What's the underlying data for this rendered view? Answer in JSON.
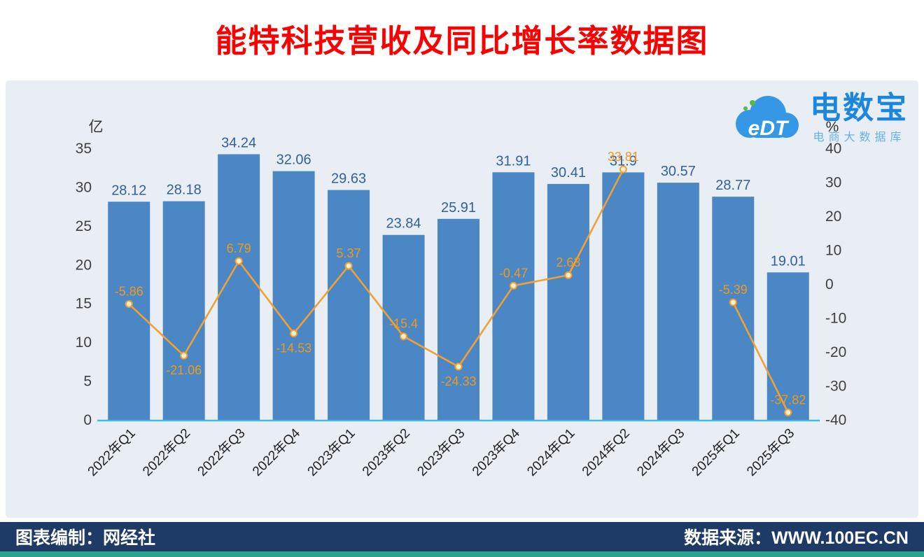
{
  "title": "能特科技营收及同比增长率数据图",
  "logo": {
    "cloud_text": "eDT",
    "name": "电数宝",
    "subtitle": "电商大数据库"
  },
  "footer": {
    "left": "图表编制：网经社",
    "right": "数据来源：WWW.100EC.CN"
  },
  "colors": {
    "title": "#fa0000",
    "bar": "#4b87c5",
    "line": "#f0a135",
    "panel_bg": "#e9eef4",
    "footer_bg": "#1d3b66",
    "footer_strip": "#2aa38e",
    "logo_blue": "#1a86dd",
    "axis_line": "#45b9e8"
  },
  "chart_data": {
    "type": "bar+line",
    "title": "能特科技营收及同比增长率数据图",
    "categories": [
      "2022年Q1",
      "2022年Q2",
      "2022年Q3",
      "2022年Q4",
      "2023年Q1",
      "2023年Q2",
      "2023年Q3",
      "2023年Q4",
      "2024年Q1",
      "2024年Q2",
      "2024年Q3",
      "2025年Q1",
      "2025年Q3"
    ],
    "series": [
      {
        "name": "营收",
        "unit": "亿",
        "type": "bar",
        "color": "#4b87c5",
        "values": [
          28.12,
          28.18,
          34.24,
          32.06,
          29.63,
          23.84,
          25.91,
          31.91,
          30.41,
          31.9,
          30.57,
          28.77,
          19.01
        ]
      },
      {
        "name": "同比增长率",
        "unit": "%",
        "type": "line",
        "color": "#f0a135",
        "values": [
          -5.86,
          -21.06,
          6.79,
          -14.53,
          5.37,
          -15.4,
          -24.33,
          -0.47,
          2.63,
          33.81,
          null,
          -5.39,
          -37.82
        ],
        "labels": [
          "-5.86",
          "-21.06",
          "6.79",
          "-14.53",
          "5.37",
          "-15.4",
          "-24.33",
          "-0.47",
          "2.63",
          "33.81",
          "",
          "-5.39",
          "-37.82"
        ]
      }
    ],
    "left_axis": {
      "label": "亿",
      "min": 0,
      "max": 35,
      "step": 5
    },
    "right_axis": {
      "label": "%",
      "min": -40,
      "max": 40,
      "step": 10
    },
    "grid": false,
    "legend": "none"
  }
}
